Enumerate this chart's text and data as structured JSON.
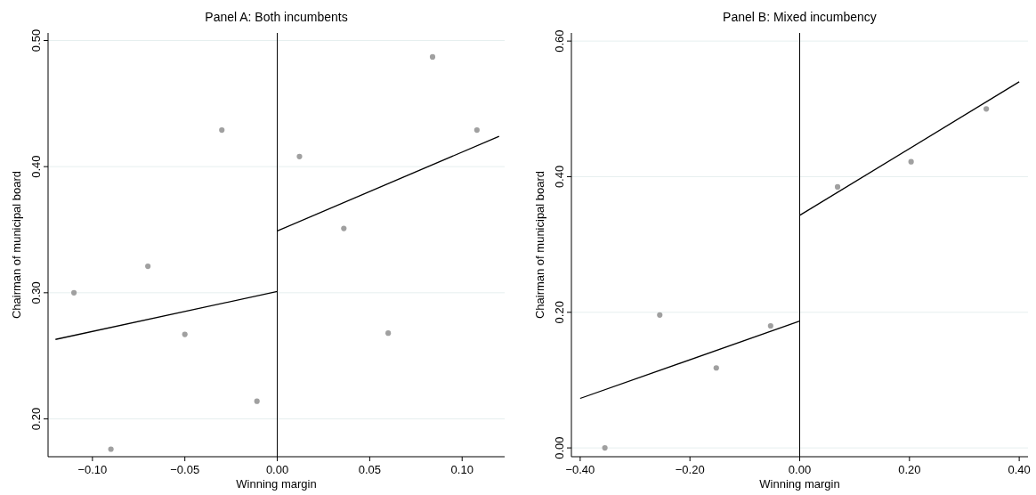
{
  "chart_data": [
    {
      "type": "scatter",
      "title": "Panel A: Both incumbents",
      "xlabel": "Winning margin",
      "ylabel": "Chairman of municipal board",
      "xlim": [
        -0.124,
        0.123
      ],
      "ylim": [
        0.17,
        0.506
      ],
      "xticks": [
        {
          "value": -0.1,
          "label": "−0.10"
        },
        {
          "value": -0.05,
          "label": "−0.05"
        },
        {
          "value": 0,
          "label": "0.00"
        },
        {
          "value": 0.05,
          "label": "0.05"
        },
        {
          "value": 0.1,
          "label": "0.10"
        }
      ],
      "yticks": [
        {
          "value": 0.2,
          "label": "0.20"
        },
        {
          "value": 0.3,
          "label": "0.30"
        },
        {
          "value": 0.4,
          "label": "0.40"
        },
        {
          "value": 0.5,
          "label": "0.50"
        }
      ],
      "grid": "y",
      "ref_lines": [
        {
          "axis": "x",
          "value": 0,
          "color": "#000000"
        }
      ],
      "series": [
        {
          "marker": "circle",
          "color": "#a0a0a0",
          "x": [
            -0.11,
            -0.09,
            -0.07,
            -0.05,
            -0.03,
            -0.011,
            0.012,
            0.036,
            0.06,
            0.084,
            0.108
          ],
          "values": [
            0.3,
            0.176,
            0.321,
            0.267,
            0.429,
            0.214,
            0.408,
            0.351,
            0.268,
            0.487,
            0.429
          ]
        },
        {
          "type": "line",
          "marker": "none",
          "color": "#000000",
          "x": [
            -0.12,
            0
          ],
          "values": [
            0.263,
            0.301
          ]
        },
        {
          "type": "line",
          "marker": "none",
          "color": "#000000",
          "x": [
            0,
            0.12
          ],
          "values": [
            0.349,
            0.424
          ]
        }
      ]
    },
    {
      "type": "scatter",
      "title": "Panel B: Mixed incumbency",
      "xlabel": "Winning margin",
      "ylabel": "Chairman of municipal board",
      "xlim": [
        -0.416,
        0.416
      ],
      "ylim": [
        -0.013,
        0.612
      ],
      "xticks": [
        {
          "value": -0.4,
          "label": "−0.40"
        },
        {
          "value": -0.2,
          "label": "−0.20"
        },
        {
          "value": 0,
          "label": "0.00"
        },
        {
          "value": 0.2,
          "label": "0.20"
        },
        {
          "value": 0.4,
          "label": "0.40"
        }
      ],
      "yticks": [
        {
          "value": 0,
          "label": "0.00"
        },
        {
          "value": 0.2,
          "label": "0.20"
        },
        {
          "value": 0.4,
          "label": "0.40"
        },
        {
          "value": 0.6,
          "label": "0.60"
        }
      ],
      "grid": "y",
      "ref_lines": [
        {
          "axis": "x",
          "value": 0,
          "color": "#000000"
        }
      ],
      "series": [
        {
          "marker": "circle",
          "color": "#a0a0a0",
          "x": [
            -0.355,
            -0.255,
            -0.152,
            -0.053,
            0.069,
            0.203,
            0.34
          ],
          "values": [
            0,
            0.196,
            0.118,
            0.18,
            0.385,
            0.422,
            0.5
          ]
        },
        {
          "type": "line",
          "marker": "none",
          "color": "#000000",
          "x": [
            -0.4,
            0
          ],
          "values": [
            0.073,
            0.187
          ]
        },
        {
          "type": "line",
          "marker": "none",
          "color": "#000000",
          "x": [
            0,
            0.4
          ],
          "values": [
            0.343,
            0.54
          ]
        }
      ]
    }
  ]
}
